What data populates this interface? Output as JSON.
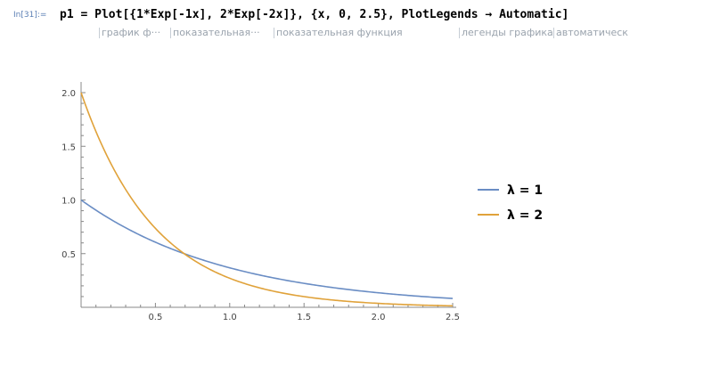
{
  "input": {
    "label": "In[31]:=",
    "code": "p1 = Plot[{1*Exp[-1x], 2*Exp[-2x]}, {x, 0, 2.5}, PlotLegends → Automatic]"
  },
  "hints": [
    "график ф···",
    "показательная···",
    "показательная функция",
    "легенды графика",
    "автоматическ"
  ],
  "chart_data": {
    "type": "line",
    "xlim": [
      0,
      2.5
    ],
    "ylim": [
      0,
      2.0
    ],
    "xticks": [
      "0.5",
      "1.0",
      "1.5",
      "2.0",
      "2.5"
    ],
    "yticks": [
      "0.5",
      "1.0",
      "1.5",
      "2.0"
    ],
    "series": [
      {
        "name": "λ = 1",
        "color": "#6a8dc4",
        "lambda": 1,
        "x": [
          0,
          0.25,
          0.5,
          0.75,
          1.0,
          1.25,
          1.5,
          1.75,
          2.0,
          2.25,
          2.5
        ],
        "y": [
          1.0,
          0.779,
          0.607,
          0.472,
          0.368,
          0.287,
          0.223,
          0.174,
          0.135,
          0.105,
          0.082
        ]
      },
      {
        "name": "λ = 2",
        "color": "#e0a23a",
        "lambda": 2,
        "x": [
          0,
          0.25,
          0.5,
          0.75,
          1.0,
          1.25,
          1.5,
          1.75,
          2.0,
          2.25,
          2.5
        ],
        "y": [
          2.0,
          1.213,
          0.736,
          0.446,
          0.271,
          0.164,
          0.1,
          0.06,
          0.037,
          0.022,
          0.013
        ]
      }
    ],
    "legend_position": "right"
  }
}
